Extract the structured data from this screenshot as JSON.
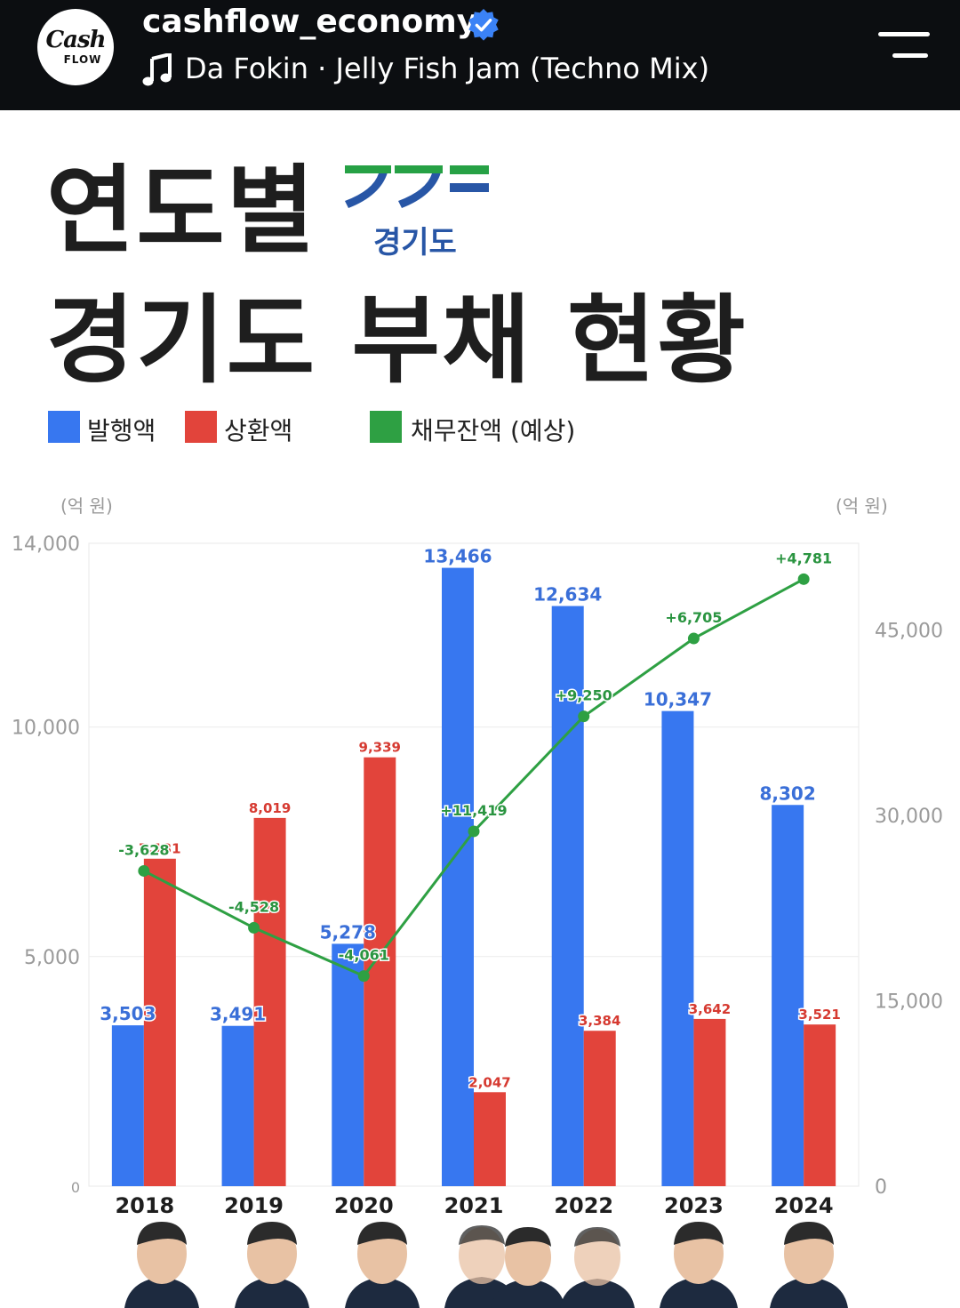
{
  "header": {
    "username": "cashflow_economy",
    "verified": true,
    "song": "Da Fokin · Jelly Fish Jam (Techno Mix)",
    "avatar_text_main": "Cash",
    "avatar_text_sub": "FLOW"
  },
  "title": {
    "line1": "연도별",
    "line2": "경기도 부채 현황",
    "logo_text": "경기도"
  },
  "legend": {
    "issuance": "발행액",
    "repayment": "상환액",
    "debt": "채무잔액 (예상)"
  },
  "colors": {
    "issuance": "#3777f0",
    "repayment": "#e2443b",
    "debt": "#2ea043",
    "logo_green": "#26a145",
    "logo_blue": "#2856a6"
  },
  "chart_data": {
    "type": "bar",
    "categories": [
      "2018",
      "2019",
      "2020",
      "2021",
      "2022",
      "2023",
      "2024"
    ],
    "left_unit": "(억 원)",
    "right_unit": "(억 원)",
    "ylim_left": [
      0,
      14000
    ],
    "ylim_right": [
      0,
      52000
    ],
    "left_ticks": [
      0,
      5000,
      10000,
      14000
    ],
    "left_tick_labels": [
      "0",
      "5,000",
      "10,000",
      "14,000"
    ],
    "right_ticks": [
      0,
      15000,
      30000,
      45000
    ],
    "right_tick_labels": [
      "0",
      "15,000",
      "30,000",
      "45,000"
    ],
    "series": [
      {
        "name": "발행액",
        "axis": "left",
        "kind": "bar",
        "values": [
          3503,
          3491,
          5278,
          13466,
          12634,
          10347,
          8302
        ],
        "labels": [
          "3,503",
          "3,491",
          "5,278",
          "13,466",
          "12,634",
          "10,347",
          "8,302"
        ]
      },
      {
        "name": "상환액",
        "axis": "left",
        "kind": "bar",
        "values": [
          7131,
          8019,
          9339,
          2047,
          3384,
          3642,
          3521
        ],
        "labels": [
          "7,131",
          "8,019",
          "9,339",
          "2,047",
          "3,384",
          "3,642",
          "3,521"
        ]
      },
      {
        "name": "채무잔액 (예상)",
        "axis": "right",
        "kind": "line",
        "values": [
          25500,
          20900,
          17000,
          28700,
          38000,
          44300,
          49100
        ],
        "labels": [
          "-3,628",
          "-4,528",
          "-4,061",
          "+11,419",
          "+9,250",
          "+6,705",
          "+4,781"
        ]
      }
    ]
  }
}
